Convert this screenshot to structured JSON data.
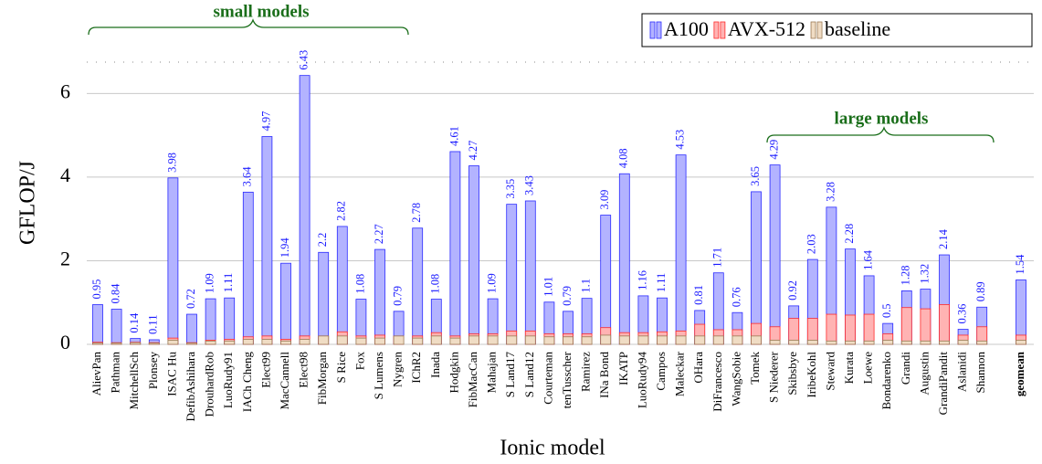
{
  "chart_data": {
    "type": "bar",
    "overlay": true,
    "x_label": "Ionic model",
    "y_label": "GFLOP/J",
    "categories": [
      "AlievPan",
      "Pathman",
      "MitchellSch",
      "Plonsey",
      "ISAC Hu",
      "DefibAshihara",
      "DrouhardRob",
      "LuoRudy91",
      "IACh Cheng",
      "Elect99",
      "MacCannell",
      "Elect98",
      "FibMorgan",
      "S Rice",
      "Fox",
      "S Lumens",
      "Nygren",
      "IChR2",
      "Inada",
      "Hodgkin",
      "FibMacCan",
      "Mahajan",
      "S Land17",
      "S Land12",
      "Courteman",
      "tenTusscher",
      "Ramirez",
      "INa Bond",
      "IKATP",
      "LuoRudy94",
      "Campos",
      "Maleckar",
      "OHara",
      "DiFrancesco",
      "WangSobie",
      "Tomek",
      "S Niederer",
      "Skibsbye",
      "IribeKohl",
      "Steward",
      "Kurata",
      "Loewe",
      "Bondarenko",
      "Grandi",
      "Augustin",
      "GrandiPandit",
      "Aslanidi",
      "Shannon",
      "geomean"
    ],
    "series": [
      {
        "name": "A100",
        "color": "#b3b3ff",
        "stroke": "#2a2aff",
        "data_labels": true,
        "values": [
          0.95,
          0.84,
          0.14,
          0.11,
          3.98,
          0.72,
          1.09,
          1.11,
          3.64,
          4.97,
          1.94,
          6.43,
          2.2,
          2.82,
          1.08,
          2.27,
          0.79,
          2.78,
          1.08,
          4.61,
          4.27,
          1.09,
          3.35,
          3.43,
          1.01,
          0.79,
          1.1,
          3.09,
          4.08,
          1.16,
          1.11,
          4.53,
          0.81,
          1.71,
          0.76,
          3.65,
          4.29,
          0.92,
          2.03,
          3.28,
          2.28,
          1.64,
          0.5,
          1.28,
          1.32,
          2.14,
          0.36,
          0.89,
          1.54
        ]
      },
      {
        "name": "AVX-512",
        "color": "#ffb3b3",
        "stroke": "#ff2a2a",
        "values": [
          0.05,
          0.04,
          0.05,
          0.04,
          0.15,
          0.04,
          0.1,
          0.12,
          0.18,
          0.2,
          0.12,
          0.2,
          0.2,
          0.3,
          0.2,
          0.22,
          0.2,
          0.2,
          0.28,
          0.2,
          0.25,
          0.25,
          0.32,
          0.32,
          0.25,
          0.25,
          0.25,
          0.4,
          0.28,
          0.28,
          0.3,
          0.32,
          0.48,
          0.35,
          0.35,
          0.5,
          0.42,
          0.62,
          0.62,
          0.72,
          0.7,
          0.72,
          0.25,
          0.88,
          0.85,
          0.95,
          0.22,
          0.42,
          0.22
        ]
      },
      {
        "name": "baseline",
        "color": "#f0dcc4",
        "stroke": "#9b7a55",
        "values": [
          0.03,
          0.03,
          0.04,
          0.03,
          0.1,
          0.03,
          0.08,
          0.08,
          0.12,
          0.12,
          0.08,
          0.12,
          0.2,
          0.2,
          0.15,
          0.15,
          0.2,
          0.15,
          0.2,
          0.15,
          0.2,
          0.2,
          0.2,
          0.2,
          0.18,
          0.18,
          0.18,
          0.22,
          0.2,
          0.2,
          0.2,
          0.2,
          0.2,
          0.2,
          0.2,
          0.2,
          0.1,
          0.1,
          0.1,
          0.08,
          0.08,
          0.08,
          0.1,
          0.08,
          0.08,
          0.08,
          0.1,
          0.08,
          0.1
        ]
      }
    ],
    "ylim": [
      0,
      6.75
    ],
    "yticks": [
      0,
      2,
      4,
      6
    ],
    "grid": true,
    "annotations": [
      {
        "text": "small models"
      },
      {
        "text": "large models"
      }
    ]
  }
}
